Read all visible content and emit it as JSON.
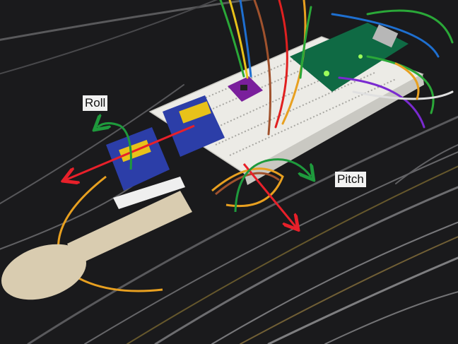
{
  "annotations": {
    "roll_label": "Roll",
    "pitch_label": "Pitch"
  },
  "colors": {
    "roll_axis": "#e8202a",
    "pitch_axis": "#e8202a",
    "rotation_arrows": "#1e9a3c",
    "table": "#1a1a1c",
    "breadboard": "#ecebe6",
    "servo": "#2c3ea8",
    "spoon": "#d9ccb0",
    "imu_board": "#7a1f9c",
    "microcontroller": "#0f6a44"
  }
}
